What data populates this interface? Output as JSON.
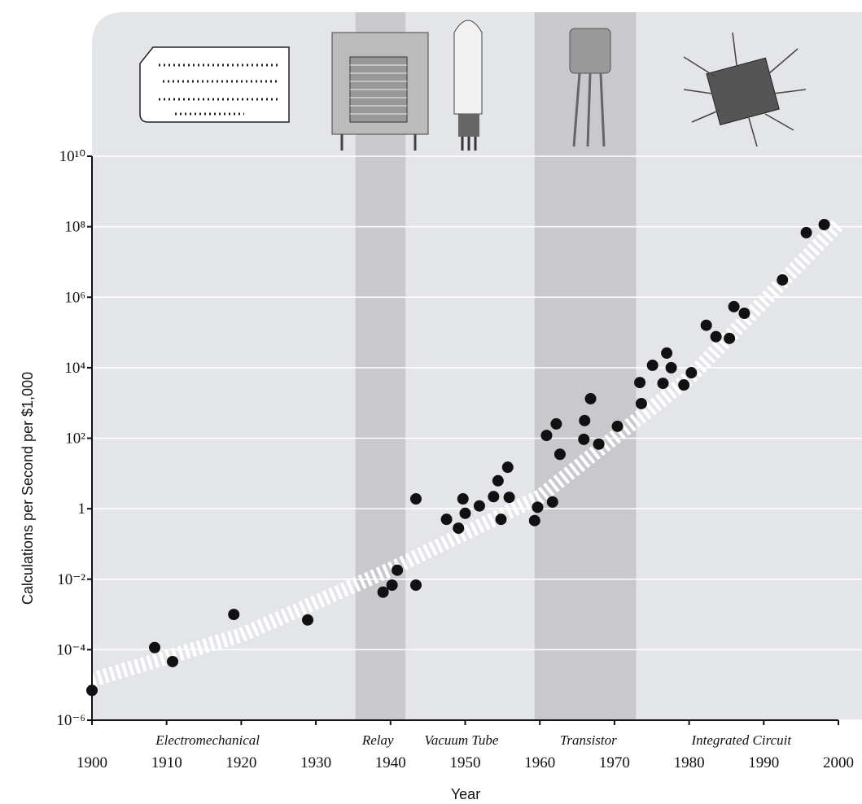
{
  "chart_data": {
    "type": "scatter",
    "y_label": "Calculations per Second per $1,000",
    "x_label": "Year",
    "xlim": [
      1900,
      2000
    ],
    "xticks": [
      1900,
      1910,
      1920,
      1930,
      1940,
      1950,
      1960,
      1970,
      1980,
      1990,
      2000
    ],
    "ylim": [
      1e-06,
      10000000000
    ],
    "log_y": true,
    "grid": true,
    "yticks": [
      {
        "value": 1e-06,
        "label": "10⁻⁶"
      },
      {
        "value": 0.0001,
        "label": "10⁻⁴"
      },
      {
        "value": 0.01,
        "label": "10⁻²"
      },
      1,
      {
        "value": 100,
        "label": "10²"
      },
      {
        "value": 10000,
        "label": "10⁴"
      },
      {
        "value": 1000000,
        "label": "10⁶"
      },
      {
        "value": 100000000,
        "label": "10⁸"
      },
      {
        "value": 10000000000,
        "label": "10¹⁰"
      }
    ],
    "color": "#111111",
    "x": [
      1900,
      1908.4,
      1910.8,
      1919,
      1928.9,
      1939,
      1940.2,
      1940.9,
      1943.4,
      1943.4,
      1947.5,
      1949.1,
      1949.7,
      1950,
      1951.9,
      1953.8,
      1954.4,
      1954.8,
      1955.7,
      1955.9,
      1959.3,
      1959.7,
      1960.9,
      1961.7,
      1962.2,
      1962.7,
      1965.9,
      1966,
      1966.8,
      1967.9,
      1970.4,
      1973.4,
      1973.6,
      1975.1,
      1976.5,
      1977,
      1977.6,
      1979.3,
      1980.3,
      1982.3,
      1983.6,
      1985.4,
      1986,
      1987.4,
      1992.5,
      1995.7,
      1998.1
    ],
    "values": [
      7e-06,
      0.000115,
      4.6e-05,
      0.001,
      0.0007,
      0.0043,
      0.0068,
      0.018,
      0.0068,
      1.9,
      0.5,
      0.28,
      1.9,
      0.74,
      1.2,
      2.2,
      6.2,
      0.5,
      15,
      2.1,
      0.46,
      1.1,
      120,
      1.55,
      255,
      35,
      93,
      316,
      1320,
      68,
      218,
      3800,
      960,
      11700,
      3600,
      26000,
      10000,
      3250,
      7200,
      160000,
      76000,
      68000,
      540000,
      350000,
      3100000,
      68000000,
      115000000
    ],
    "trend": {
      "x": [
        1900,
        1920,
        1940,
        1960,
        1980,
        2000
      ],
      "values": [
        1.4e-05,
        0.00026,
        0.019,
        2.2,
        5000,
        120000000
      ]
    },
    "shaded_ranges": [
      [
        1935.3,
        1942
      ],
      [
        1959.3,
        1972.9
      ]
    ],
    "annotations": [
      {
        "text": "Electromechanical",
        "x": 1915.5
      },
      {
        "text": "Relay",
        "x": 1938.3
      },
      {
        "text": "Vacuum Tube",
        "x": 1949.5
      },
      {
        "text": "Transistor",
        "x": 1966.5
      },
      {
        "text": "Integrated Circuit",
        "x": 1987
      }
    ]
  }
}
